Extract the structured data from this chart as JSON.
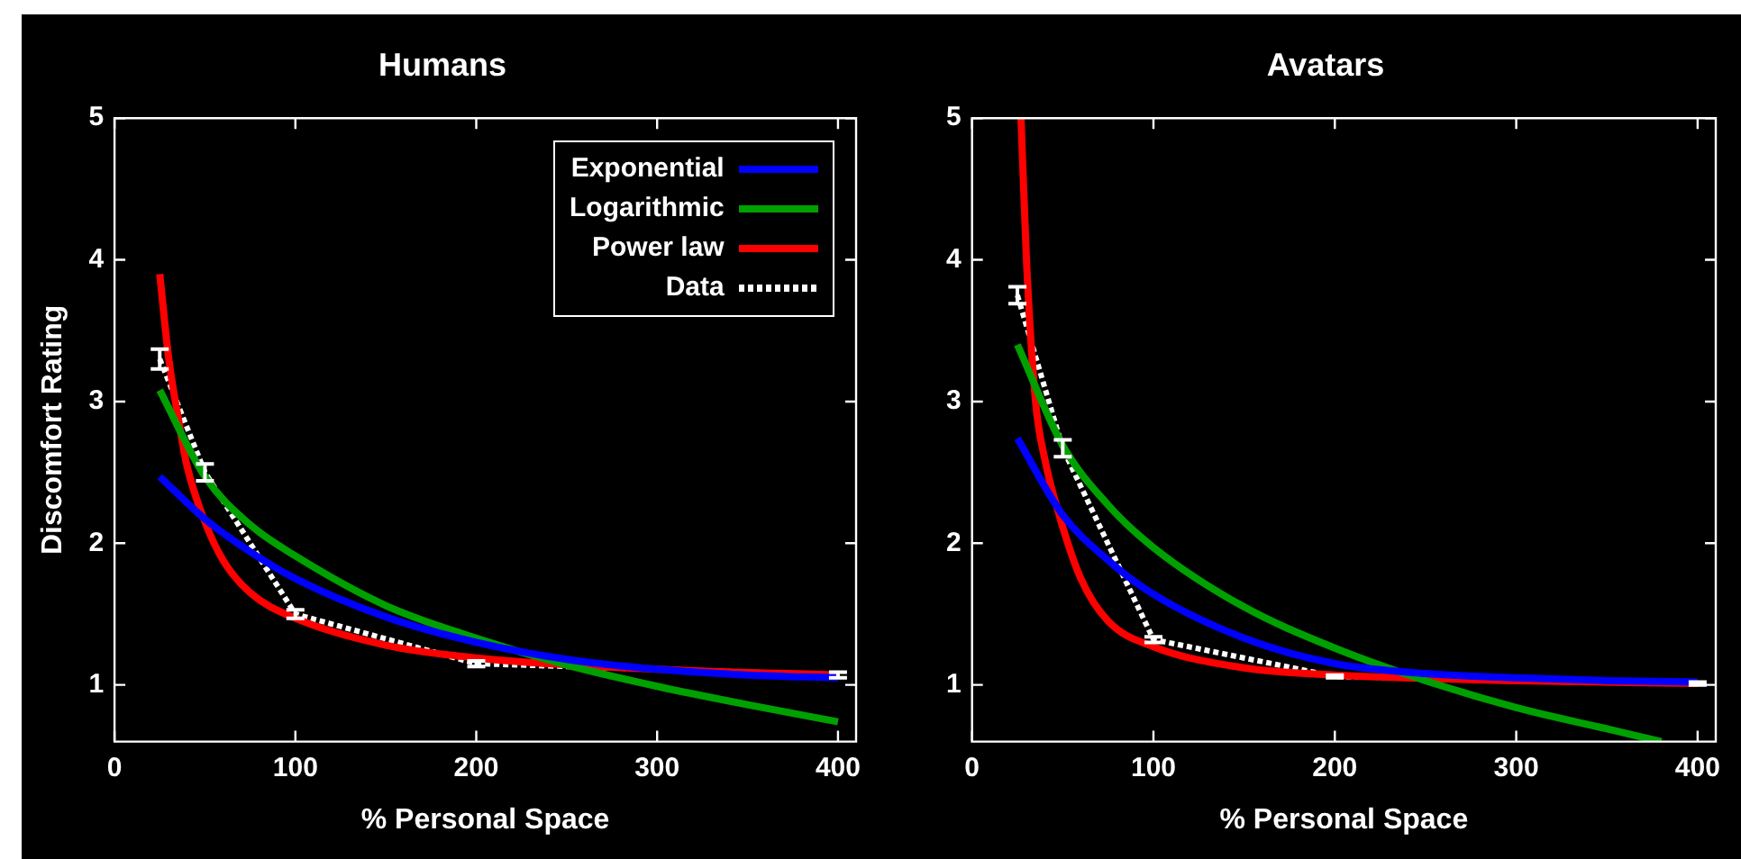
{
  "chart_data": [
    {
      "type": "line",
      "title": "Humans",
      "xlabel": "% Personal Space",
      "ylabel": "Discomfort Rating",
      "xlim": [
        0,
        410
      ],
      "ylim": [
        0.6,
        5
      ],
      "xticks": [
        0,
        100,
        200,
        300,
        400
      ],
      "yticks": [
        1,
        2,
        3,
        4,
        5
      ],
      "grid": false,
      "legend": "top right",
      "series": [
        {
          "name": "Exponential",
          "color": "#0000ff",
          "x": [
            25,
            50,
            75,
            100,
            150,
            200,
            250,
            300,
            350,
            400
          ],
          "values": [
            2.47,
            2.17,
            1.94,
            1.75,
            1.48,
            1.3,
            1.18,
            1.11,
            1.07,
            1.05
          ]
        },
        {
          "name": "Logarithmic",
          "color": "#00a000",
          "x": [
            25,
            50,
            75,
            100,
            150,
            200,
            250,
            300,
            350,
            400
          ],
          "values": [
            3.08,
            2.47,
            2.13,
            1.91,
            1.56,
            1.33,
            1.14,
            0.99,
            0.86,
            0.74
          ]
        },
        {
          "name": "Power law",
          "color": "#ff0000",
          "x": [
            25,
            30,
            35,
            40,
            50,
            60,
            75,
            100,
            150,
            200,
            300,
            400
          ],
          "values": [
            3.9,
            3.3,
            2.9,
            2.55,
            2.15,
            1.88,
            1.65,
            1.47,
            1.28,
            1.19,
            1.11,
            1.07
          ]
        },
        {
          "name": "Data",
          "color": "#ffffff",
          "line_style": "dotted",
          "x": [
            25,
            50,
            100,
            200,
            400
          ],
          "values": [
            3.3,
            2.5,
            1.5,
            1.15,
            1.07
          ],
          "errors": [
            0.07,
            0.06,
            0.03,
            0.02,
            0.02
          ]
        }
      ]
    },
    {
      "type": "line",
      "title": "Avatars",
      "xlabel": "% Personal Space",
      "xlim": [
        0,
        410
      ],
      "ylim": [
        0.6,
        5
      ],
      "xticks": [
        0,
        100,
        200,
        300,
        400
      ],
      "yticks": [
        1,
        2,
        3,
        4,
        5
      ],
      "grid": false,
      "series": [
        {
          "color": "#0000ff",
          "x": [
            25,
            50,
            75,
            100,
            150,
            200,
            250,
            300,
            350,
            400
          ],
          "values": [
            2.74,
            2.2,
            1.88,
            1.64,
            1.33,
            1.15,
            1.08,
            1.05,
            1.03,
            1.02
          ]
        },
        {
          "color": "#00a000",
          "x": [
            25,
            50,
            75,
            100,
            150,
            200,
            250,
            300,
            350,
            380
          ],
          "values": [
            3.4,
            2.69,
            2.27,
            1.97,
            1.55,
            1.26,
            1.03,
            0.84,
            0.69,
            0.6
          ]
        },
        {
          "color": "#ff0000",
          "x": [
            27,
            30,
            35,
            40,
            48,
            60,
            75,
            100,
            150,
            200,
            300,
            400
          ],
          "values": [
            5.0,
            4.0,
            3.0,
            2.6,
            2.2,
            1.75,
            1.45,
            1.27,
            1.12,
            1.07,
            1.03,
            1.01
          ]
        },
        {
          "color": "#ffffff",
          "line_style": "dotted",
          "x": [
            25,
            50,
            100,
            200,
            400
          ],
          "values": [
            3.75,
            2.67,
            1.32,
            1.06,
            1.01
          ],
          "errors": [
            0.06,
            0.06,
            0.02,
            0.01,
            0.01
          ]
        }
      ]
    }
  ]
}
